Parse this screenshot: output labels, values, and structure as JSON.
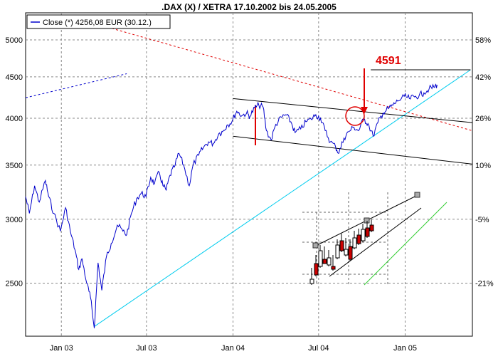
{
  "chart_data": {
    "type": "line",
    "title": ".DAX (X) / XETRA 17.10.2002 bis 24.05.2005",
    "legend": {
      "label": "Close (*) 4256,08 EUR (30.12.)",
      "placement": "top-left"
    },
    "x_ticks": [
      "Jan 03",
      "Jul 03",
      "Jan 04",
      "Jul 04",
      "Jan 05"
    ],
    "y_left_ticks": [
      5000,
      4500,
      4000,
      3500,
      3000,
      2500
    ],
    "y_right_ticks": [
      "58%",
      "42%",
      "26%",
      "10%",
      "-5%",
      "-21%"
    ],
    "y_scale": "log",
    "ylim": [
      2150,
      5400
    ],
    "grid": true,
    "annotation": {
      "text": "4591",
      "value": 4591,
      "color": "#e00000"
    },
    "colors": {
      "price": "#0000cc",
      "trendline": "#00ccee",
      "resistance": "#e00000",
      "channel": "#000000",
      "projection": "#0000cc",
      "inset_trend": "#33cc33",
      "inset_down": "#cc0000"
    },
    "series": [
      {
        "name": "Close (*) 4256,08 EUR (30.12.)",
        "points": [
          [
            "2002-10-17",
            3200
          ],
          [
            "2002-10-25",
            3050
          ],
          [
            "2002-11-05",
            3300
          ],
          [
            "2002-11-15",
            3150
          ],
          [
            "2002-11-28",
            3350
          ],
          [
            "2002-12-05",
            3200
          ],
          [
            "2002-12-16",
            3050
          ],
          [
            "2002-12-30",
            2900
          ],
          [
            "2003-01-10",
            3100
          ],
          [
            "2003-01-20",
            2900
          ],
          [
            "2003-01-30",
            2750
          ],
          [
            "2003-02-07",
            2600
          ],
          [
            "2003-02-14",
            2680
          ],
          [
            "2003-02-24",
            2500
          ],
          [
            "2003-03-04",
            2400
          ],
          [
            "2003-03-12",
            2200
          ],
          [
            "2003-03-20",
            2650
          ],
          [
            "2003-03-28",
            2450
          ],
          [
            "2003-04-07",
            2700
          ],
          [
            "2003-04-17",
            2800
          ],
          [
            "2003-04-30",
            2950
          ],
          [
            "2003-05-12",
            2900
          ],
          [
            "2003-05-20",
            2870
          ],
          [
            "2003-05-30",
            3050
          ],
          [
            "2003-06-10",
            3180
          ],
          [
            "2003-06-20",
            3230
          ],
          [
            "2003-06-30",
            3200
          ],
          [
            "2003-07-10",
            3380
          ],
          [
            "2003-07-18",
            3320
          ],
          [
            "2003-07-28",
            3430
          ],
          [
            "2003-08-05",
            3300
          ],
          [
            "2003-08-12",
            3260
          ],
          [
            "2003-08-20",
            3400
          ],
          [
            "2003-08-29",
            3480
          ],
          [
            "2003-09-08",
            3620
          ],
          [
            "2003-09-18",
            3500
          ],
          [
            "2003-09-30",
            3300
          ],
          [
            "2003-10-08",
            3500
          ],
          [
            "2003-10-20",
            3600
          ],
          [
            "2003-10-30",
            3680
          ],
          [
            "2003-11-10",
            3740
          ],
          [
            "2003-11-20",
            3720
          ],
          [
            "2003-12-02",
            3830
          ],
          [
            "2003-12-10",
            3850
          ],
          [
            "2003-12-19",
            3920
          ],
          [
            "2003-12-30",
            3965
          ],
          [
            "2004-01-09",
            4080
          ],
          [
            "2004-01-20",
            4030
          ],
          [
            "2004-01-30",
            4060
          ],
          [
            "2004-02-06",
            4020
          ],
          [
            "2004-02-16",
            4120
          ],
          [
            "2004-02-25",
            4150
          ],
          [
            "2004-03-05",
            4130
          ],
          [
            "2004-03-12",
            3860
          ],
          [
            "2004-03-22",
            3760
          ],
          [
            "2004-04-01",
            3930
          ],
          [
            "2004-04-13",
            4010
          ],
          [
            "2004-04-22",
            4040
          ],
          [
            "2004-05-03",
            3960
          ],
          [
            "2004-05-12",
            3840
          ],
          [
            "2004-05-24",
            3880
          ],
          [
            "2004-06-04",
            3960
          ],
          [
            "2004-06-15",
            3990
          ],
          [
            "2004-06-25",
            4040
          ],
          [
            "2004-07-05",
            4000
          ],
          [
            "2004-07-15",
            3860
          ],
          [
            "2004-07-26",
            3740
          ],
          [
            "2004-08-06",
            3690
          ],
          [
            "2004-08-13",
            3620
          ],
          [
            "2004-08-24",
            3780
          ],
          [
            "2004-09-03",
            3850
          ],
          [
            "2004-09-14",
            3900
          ],
          [
            "2004-09-24",
            3860
          ],
          [
            "2004-10-05",
            3990
          ],
          [
            "2004-10-14",
            3940
          ],
          [
            "2004-10-25",
            3800
          ],
          [
            "2004-11-04",
            3950
          ],
          [
            "2004-11-15",
            4060
          ],
          [
            "2004-11-26",
            4110
          ],
          [
            "2004-12-06",
            4150
          ],
          [
            "2004-12-16",
            4200
          ],
          [
            "2004-12-30",
            4256
          ],
          [
            "2005-01-10",
            4230
          ],
          [
            "2005-01-21",
            4250
          ],
          [
            "2005-01-31",
            4270
          ],
          [
            "2005-02-10",
            4300
          ],
          [
            "2005-02-21",
            4350
          ],
          [
            "2005-03-03",
            4370
          ],
          [
            "2005-03-10",
            4400
          ]
        ]
      }
    ],
    "lines": [
      {
        "name": "uptrend",
        "start": [
          "2003-03-12",
          2210
        ],
        "end": [
          "2005-05-20",
          4591
        ]
      },
      {
        "name": "resistance",
        "start": [
          "2003-04-01",
          5200
        ],
        "end": [
          "2005-05-24",
          3860
        ]
      },
      {
        "name": "channel-top",
        "start": [
          "2004-01-01",
          4230
        ],
        "end": [
          "2005-05-24",
          3950
        ]
      },
      {
        "name": "channel-bottom",
        "start": [
          "2004-01-01",
          3800
        ],
        "end": [
          "2005-05-24",
          3510
        ]
      },
      {
        "name": "target-level",
        "start": [
          "2004-10-20",
          4591
        ],
        "end": [
          "2005-05-20",
          4591
        ]
      },
      {
        "name": "projection",
        "start": [
          "2002-10-17",
          4240
        ],
        "end": [
          "2003-05-20",
          4540
        ]
      }
    ]
  }
}
